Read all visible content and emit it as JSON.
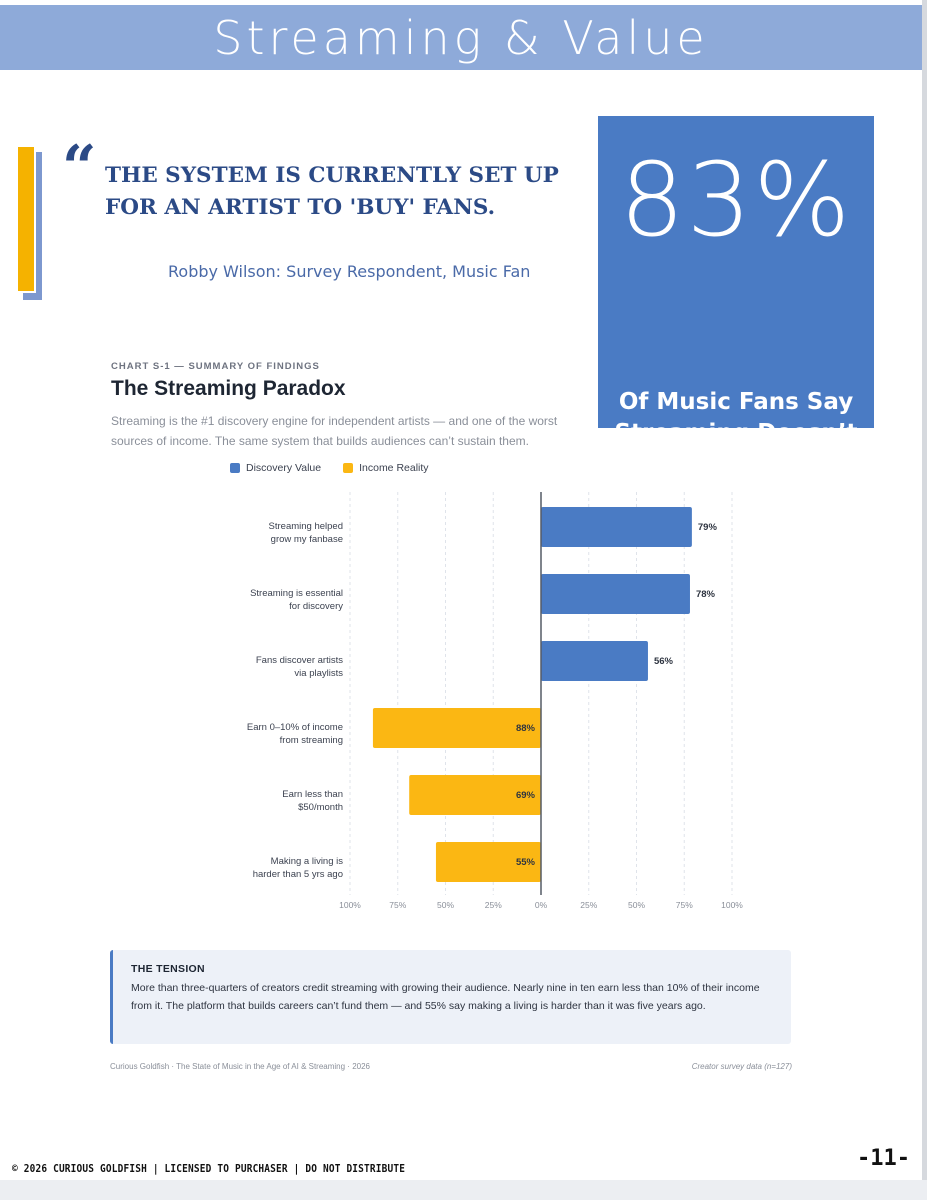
{
  "header": {
    "title": "Streaming & Value"
  },
  "quote": {
    "mark": "“",
    "text": "THE SYSTEM IS CURRENTLY SET UP FOR AN ARTIST TO 'BUY' FANS.",
    "attribution": "Robby Wilson: Survey Respondent, Music Fan"
  },
  "stat": {
    "number": "83%",
    "caption": "Of Music Fans Say Streaming Doesn’t Pay Fairly"
  },
  "chart_header": {
    "kicker": "CHART S-1 — SUMMARY OF FINDINGS",
    "title": "The Streaming Paradox",
    "subtitle": "Streaming is the #1 discovery engine for independent artists — and one of the worst sources of income. The same system that builds audiences can’t sustain them."
  },
  "legend": [
    {
      "label": "Discovery Value",
      "color": "#4a7bc4"
    },
    {
      "label": "Income Reality",
      "color": "#fbb713"
    }
  ],
  "chart_data": {
    "type": "bar",
    "orientation": "horizontal-diverging",
    "categories": [
      "Streaming helped grow my fanbase",
      "Streaming is essential for discovery",
      "Fans discover artists via playlists",
      "Earn 0–10% of income from streaming",
      "Earn less than $50/month",
      "Making a living is harder than 5 yrs ago"
    ],
    "category_lines": [
      [
        "Streaming helped",
        "grow my fanbase"
      ],
      [
        "Streaming is essential",
        "for discovery"
      ],
      [
        "Fans discover artists",
        "via playlists"
      ],
      [
        "Earn 0–10% of income",
        "from streaming"
      ],
      [
        "Earn less than",
        "$50/month"
      ],
      [
        "Making a living is",
        "harder than 5 yrs ago"
      ]
    ],
    "series": [
      {
        "name": "Discovery Value",
        "direction": "right",
        "color": "#4a7bc4",
        "values": [
          79,
          78,
          56,
          null,
          null,
          null
        ]
      },
      {
        "name": "Income Reality",
        "direction": "left",
        "color": "#fbb713",
        "values": [
          null,
          null,
          null,
          88,
          69,
          55
        ]
      }
    ],
    "value_labels": [
      "79%",
      "78%",
      "56%",
      "88%",
      "69%",
      "55%"
    ],
    "x_ticks": [
      "100%",
      "75%",
      "50%",
      "25%",
      "0%",
      "25%",
      "50%",
      "75%",
      "100%"
    ],
    "xlim": [
      -100,
      100
    ],
    "grid": true
  },
  "tension": {
    "title": "THE TENSION",
    "body": "More than three-quarters of creators credit streaming with growing their audience. Nearly nine in ten earn less than 10% of their income from it. The platform that builds careers can’t fund them — and 55% say making a living is harder than it was five years ago."
  },
  "footer": {
    "source": "Curious Goldfish · The State of Music in the Age of AI & Streaming · 2026",
    "note": "Creator survey data (n=127)"
  },
  "copyright": "© 2026 CURIOUS GOLDFISH | LICENSED TO PURCHASER  | DO NOT DISTRIBUTE",
  "page_number": "-11-"
}
